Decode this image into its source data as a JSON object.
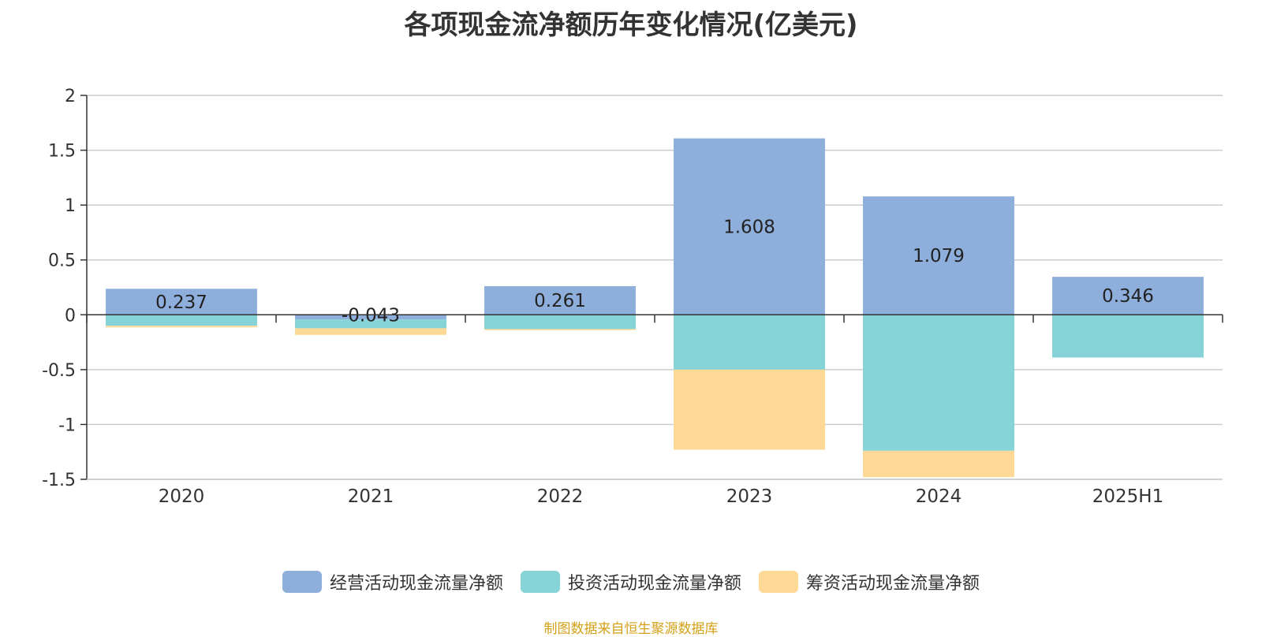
{
  "chart_data": {
    "type": "bar",
    "stacked": true,
    "title": "各项现金流净额历年变化情况(亿美元)",
    "categories": [
      "2020",
      "2021",
      "2022",
      "2023",
      "2024",
      "2025H1"
    ],
    "series": [
      {
        "name": "经营活动现金流量净额",
        "color": "#8eaedb",
        "values": [
          0.237,
          -0.043,
          0.261,
          1.608,
          1.079,
          0.346
        ],
        "labels": [
          "0.237",
          "-0.043",
          "0.261",
          "1.608",
          "1.079",
          "0.346"
        ]
      },
      {
        "name": "投资活动现金流量净额",
        "color": "#86d4d8",
        "values": [
          -0.1,
          -0.08,
          -0.13,
          -0.5,
          -1.24,
          -0.39
        ]
      },
      {
        "name": "筹资活动现金流量净额",
        "color": "#fed996",
        "values": [
          -0.015,
          -0.06,
          -0.01,
          -0.73,
          -0.24,
          0
        ]
      }
    ],
    "ylim": [
      -1.5,
      2
    ],
    "yticks": [
      2,
      1.5,
      1,
      0.5,
      0,
      -0.5,
      -1,
      -1.5
    ],
    "ytick_labels": [
      "2",
      "1.5",
      "1",
      "0.5",
      "0",
      "-0.5",
      "-1",
      "-1.5"
    ],
    "grid": true,
    "legend_position": "bottom"
  },
  "source_note": "制图数据来自恒生聚源数据库"
}
